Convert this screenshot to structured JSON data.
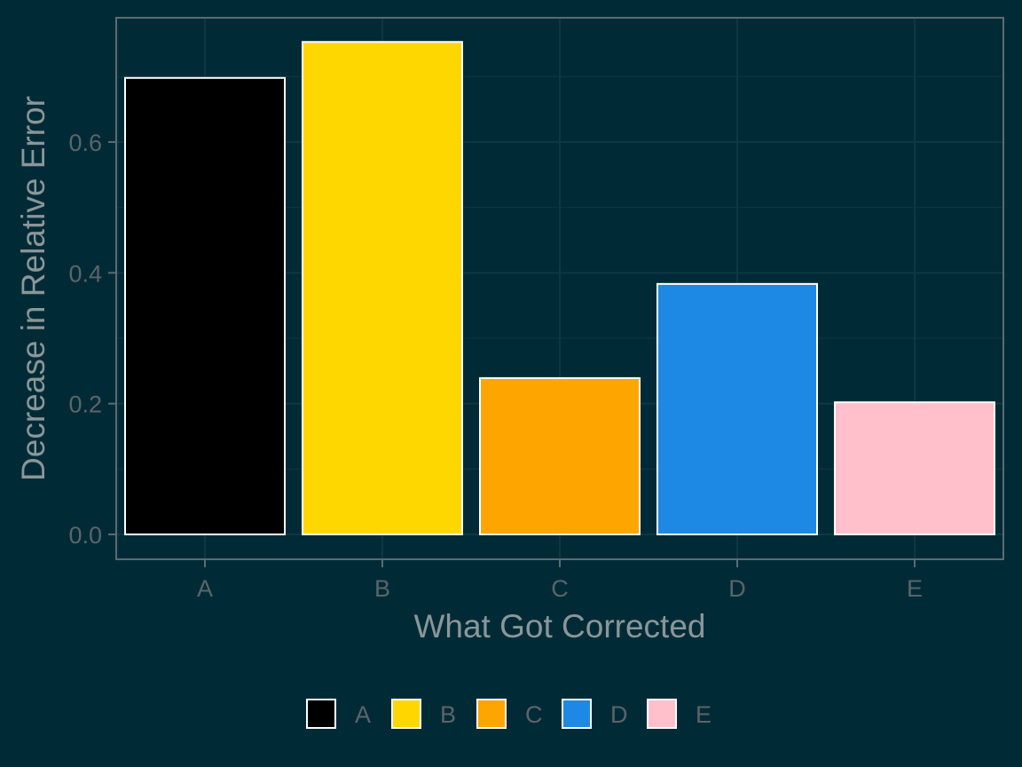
{
  "chart_data": {
    "type": "bar",
    "categories": [
      "A",
      "B",
      "C",
      "D",
      "E"
    ],
    "values": [
      0.698,
      0.753,
      0.239,
      0.383,
      0.202
    ],
    "colors": [
      "#000000",
      "#ffd700",
      "#ffa500",
      "#1e88e5",
      "#ffc0cb"
    ],
    "xlabel": "What Got Corrected",
    "ylabel": "Decrease in Relative Error",
    "ylim": [
      -0.038,
      0.79
    ],
    "yticks": [
      0.0,
      0.2,
      0.4,
      0.6
    ],
    "ytick_labels": [
      "0.0",
      "0.2",
      "0.4",
      "0.6"
    ],
    "grid": true,
    "legend": {
      "position": "bottom",
      "entries": [
        "A",
        "B",
        "C",
        "D",
        "E"
      ]
    },
    "theme": {
      "background": "#002b36",
      "grid_color": "#0e3743",
      "panel_border_color": "#5b6c72",
      "bar_outline_color": "#ffffff"
    }
  }
}
